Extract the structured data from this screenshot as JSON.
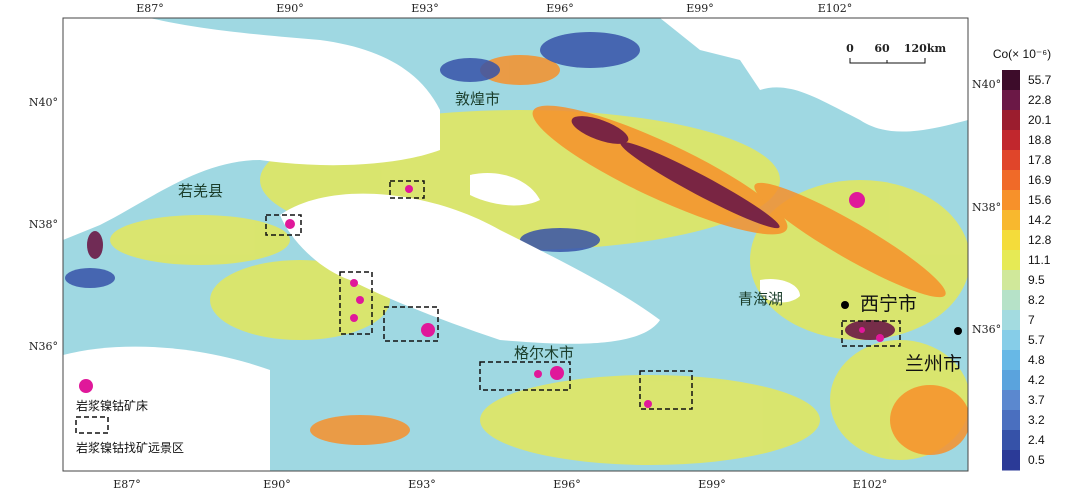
{
  "map": {
    "top_axis": [
      "E87°",
      "E90°",
      "E93°",
      "E96°",
      "E99°",
      "E102°"
    ],
    "bottom_axis": [
      "E87°",
      "E90°",
      "E93°",
      "E96°",
      "E99°",
      "E102°"
    ],
    "left_axis": [
      "N40°",
      "N38°",
      "N36°"
    ],
    "right_axis": [
      "N40°",
      "N38°",
      "N36°"
    ],
    "places": [
      "敦煌市",
      "若羌县",
      "青海湖",
      "格尔木市",
      "西宁市",
      "兰州市"
    ],
    "scale_bar": [
      "0",
      "60",
      "120km"
    ]
  },
  "legend": {
    "deposit": "岩浆镍钴矿床",
    "prospect": "岩浆镍钴找矿远景区"
  },
  "colorbar": {
    "title": "Co(× 10⁻⁶)",
    "labels": [
      "55.7",
      "22.8",
      "20.1",
      "18.8",
      "17.8",
      "16.9",
      "15.6",
      "14.2",
      "12.8",
      "11.1",
      "9.5",
      "8.2",
      "7",
      "5.7",
      "4.8",
      "4.2",
      "3.7",
      "3.2",
      "2.4",
      "0.5"
    ],
    "colors": [
      "#3d0c2a",
      "#6b1846",
      "#9b1d2e",
      "#c1272d",
      "#e0452a",
      "#f06a28",
      "#f7912a",
      "#f8b82e",
      "#f4dc3a",
      "#e6ea55",
      "#d0e89a",
      "#b6e2c8",
      "#a3dbe0",
      "#86cde8",
      "#67b8e6",
      "#5aa3dd",
      "#5b88cf",
      "#4a6fbf",
      "#3652a8",
      "#2b3a97"
    ]
  }
}
